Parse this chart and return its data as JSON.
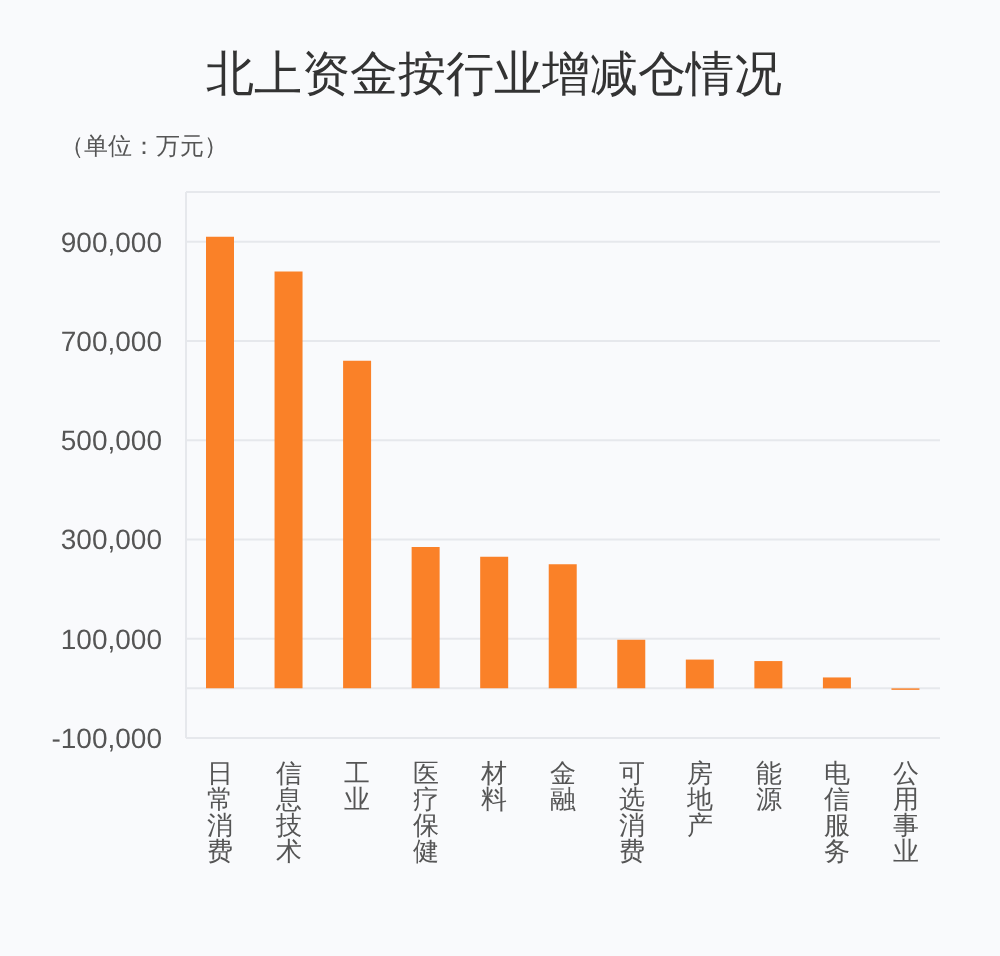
{
  "chart_data": {
    "type": "bar",
    "title": "北上资金按行业增减仓情况",
    "subtitle": "（单位：万元）",
    "categories": [
      "日常消费",
      "信息技术",
      "工业",
      "医疗保健",
      "材料",
      "金融",
      "可选消费",
      "房地产",
      "能源",
      "电信服务",
      "公用事业"
    ],
    "values": [
      910000,
      840000,
      660000,
      285000,
      265000,
      250000,
      98000,
      58000,
      55000,
      22000,
      -3000
    ],
    "color": "#fa8128",
    "ylim": [
      -100000,
      1000000
    ],
    "yticks": [
      {
        "value": -100000,
        "label": "-100,000"
      },
      {
        "value": 0,
        "label": null
      },
      {
        "value": 100000,
        "label": "100,000"
      },
      {
        "value": 300000,
        "label": "300,000"
      },
      {
        "value": 500000,
        "label": "500,000"
      },
      {
        "value": 700000,
        "label": "700,000"
      },
      {
        "value": 900000,
        "label": "900,000"
      }
    ],
    "grid": "y"
  }
}
